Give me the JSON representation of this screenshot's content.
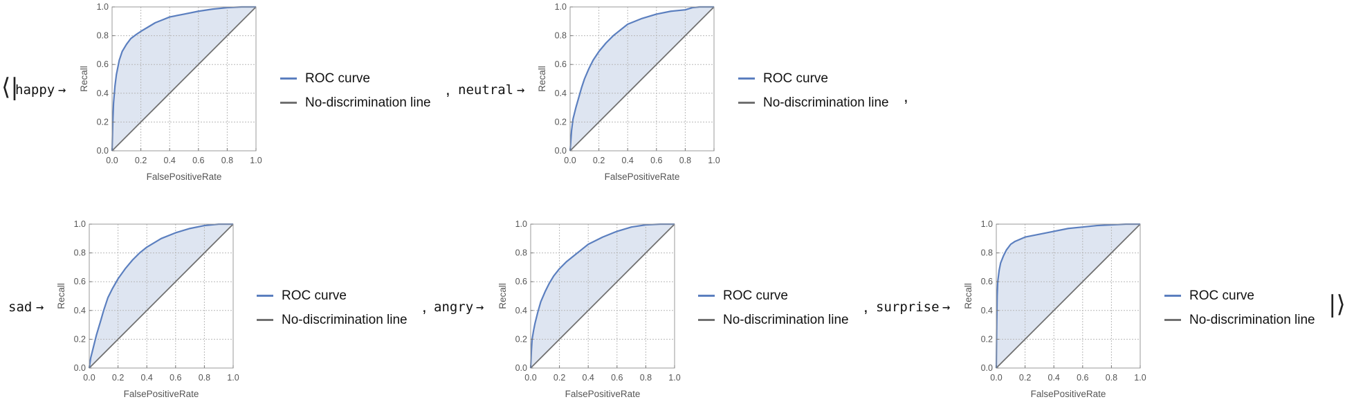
{
  "association": {
    "open": "⟨|",
    "close": "|⟩",
    "comma": ",",
    "arrow": "→"
  },
  "styles": {
    "roc_color": "#5b7fbf",
    "fill_color": "#dce4f0",
    "diag_color": "#707070",
    "grid_color": "#b7b7b7",
    "frame_color": "#9a9a9a"
  },
  "chart_data": [
    {
      "type": "line",
      "key": "happy",
      "xlabel": "FalsePositiveRate",
      "ylabel": "Recall",
      "xlim": [
        0,
        1
      ],
      "ylim": [
        0,
        1
      ],
      "xticks": [
        "0.0",
        "0.2",
        "0.4",
        "0.6",
        "0.8",
        "1.0"
      ],
      "yticks": [
        "0.0",
        "0.2",
        "0.4",
        "0.6",
        "0.8",
        "1.0"
      ],
      "grid": true,
      "legend_position": "right",
      "series": [
        {
          "name": "ROC curve",
          "x": [
            0,
            0.005,
            0.01,
            0.02,
            0.03,
            0.05,
            0.07,
            0.1,
            0.13,
            0.17,
            0.2,
            0.25,
            0.3,
            0.35,
            0.4,
            0.5,
            0.6,
            0.7,
            0.8,
            0.9,
            1.0
          ],
          "y": [
            0,
            0.2,
            0.33,
            0.45,
            0.53,
            0.63,
            0.69,
            0.74,
            0.78,
            0.81,
            0.83,
            0.86,
            0.89,
            0.91,
            0.93,
            0.95,
            0.97,
            0.985,
            0.995,
            1.0,
            1.0
          ]
        },
        {
          "name": "No-discrimination line",
          "x": [
            0,
            1
          ],
          "y": [
            0,
            1
          ]
        }
      ]
    },
    {
      "type": "line",
      "key": "neutral",
      "xlabel": "FalsePositiveRate",
      "ylabel": "Recall",
      "xlim": [
        0,
        1
      ],
      "ylim": [
        0,
        1
      ],
      "xticks": [
        "0.0",
        "0.2",
        "0.4",
        "0.6",
        "0.8",
        "1.0"
      ],
      "yticks": [
        "0.0",
        "0.2",
        "0.4",
        "0.6",
        "0.8",
        "1.0"
      ],
      "grid": true,
      "legend_position": "right",
      "series": [
        {
          "name": "ROC curve",
          "x": [
            0,
            0.01,
            0.02,
            0.04,
            0.06,
            0.08,
            0.1,
            0.13,
            0.16,
            0.2,
            0.25,
            0.3,
            0.35,
            0.4,
            0.5,
            0.6,
            0.7,
            0.8,
            0.85,
            0.9,
            1.0
          ],
          "y": [
            0,
            0.14,
            0.22,
            0.3,
            0.37,
            0.44,
            0.5,
            0.57,
            0.63,
            0.69,
            0.75,
            0.8,
            0.84,
            0.88,
            0.92,
            0.95,
            0.97,
            0.98,
            0.995,
            1.0,
            1.0
          ]
        },
        {
          "name": "No-discrimination line",
          "x": [
            0,
            1
          ],
          "y": [
            0,
            1
          ]
        }
      ]
    },
    {
      "type": "line",
      "key": "sad",
      "xlabel": "FalsePositiveRate",
      "ylabel": "Recall",
      "xlim": [
        0,
        1
      ],
      "ylim": [
        0,
        1
      ],
      "xticks": [
        "0.0",
        "0.2",
        "0.4",
        "0.6",
        "0.8",
        "1.0"
      ],
      "yticks": [
        "0.0",
        "0.2",
        "0.4",
        "0.6",
        "0.8",
        "1.0"
      ],
      "grid": true,
      "legend_position": "right",
      "series": [
        {
          "name": "ROC curve",
          "x": [
            0,
            0.01,
            0.03,
            0.05,
            0.08,
            0.1,
            0.13,
            0.16,
            0.2,
            0.25,
            0.3,
            0.35,
            0.4,
            0.45,
            0.5,
            0.6,
            0.7,
            0.8,
            0.9,
            1.0
          ],
          "y": [
            0,
            0.07,
            0.15,
            0.23,
            0.33,
            0.4,
            0.49,
            0.55,
            0.62,
            0.69,
            0.75,
            0.8,
            0.84,
            0.87,
            0.9,
            0.94,
            0.97,
            0.99,
            1.0,
            1.0
          ]
        },
        {
          "name": "No-discrimination line",
          "x": [
            0,
            1
          ],
          "y": [
            0,
            1
          ]
        }
      ]
    },
    {
      "type": "line",
      "key": "angry",
      "xlabel": "FalsePositiveRate",
      "ylabel": "Recall",
      "xlim": [
        0,
        1
      ],
      "ylim": [
        0,
        1
      ],
      "xticks": [
        "0.0",
        "0.2",
        "0.4",
        "0.6",
        "0.8",
        "1.0"
      ],
      "yticks": [
        "0.0",
        "0.2",
        "0.4",
        "0.6",
        "0.8",
        "1.0"
      ],
      "grid": true,
      "legend_position": "right",
      "series": [
        {
          "name": "ROC curve",
          "x": [
            0,
            0.005,
            0.01,
            0.02,
            0.03,
            0.05,
            0.07,
            0.1,
            0.13,
            0.16,
            0.2,
            0.25,
            0.3,
            0.35,
            0.4,
            0.5,
            0.6,
            0.7,
            0.8,
            0.9,
            1.0
          ],
          "y": [
            0,
            0.12,
            0.2,
            0.26,
            0.31,
            0.39,
            0.46,
            0.53,
            0.59,
            0.64,
            0.69,
            0.74,
            0.78,
            0.82,
            0.86,
            0.91,
            0.95,
            0.98,
            0.995,
            1.0,
            1.0
          ]
        },
        {
          "name": "No-discrimination line",
          "x": [
            0,
            1
          ],
          "y": [
            0,
            1
          ]
        }
      ]
    },
    {
      "type": "line",
      "key": "surprise",
      "xlabel": "FalsePositiveRate",
      "ylabel": "Recall",
      "xlim": [
        0,
        1
      ],
      "ylim": [
        0,
        1
      ],
      "xticks": [
        "0.0",
        "0.2",
        "0.4",
        "0.6",
        "0.8",
        "1.0"
      ],
      "yticks": [
        "0.0",
        "0.2",
        "0.4",
        "0.6",
        "0.8",
        "1.0"
      ],
      "grid": true,
      "legend_position": "right",
      "series": [
        {
          "name": "ROC curve",
          "x": [
            0,
            0.003,
            0.006,
            0.01,
            0.02,
            0.03,
            0.05,
            0.07,
            0.1,
            0.13,
            0.2,
            0.3,
            0.4,
            0.5,
            0.6,
            0.7,
            0.8,
            0.9,
            1.0
          ],
          "y": [
            0,
            0.3,
            0.5,
            0.6,
            0.68,
            0.73,
            0.78,
            0.82,
            0.86,
            0.88,
            0.91,
            0.93,
            0.95,
            0.97,
            0.98,
            0.99,
            0.995,
            1.0,
            1.0
          ]
        },
        {
          "name": "No-discrimination line",
          "x": [
            0,
            1
          ],
          "y": [
            0,
            1
          ]
        }
      ]
    }
  ]
}
